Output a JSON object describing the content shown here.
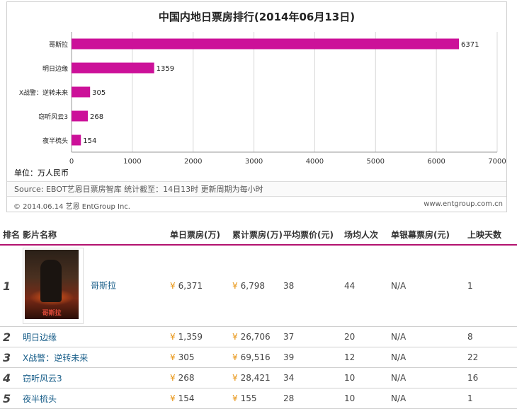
{
  "chart_data": {
    "type": "bar",
    "orientation": "horizontal",
    "title": "中国内地日票房排行(2014年06月13日)",
    "categories": [
      "哥斯拉",
      "明日边缘",
      "X战警：逆转未来",
      "窃听风云3",
      "夜半梳头"
    ],
    "values": [
      6371,
      1359,
      305,
      268,
      154
    ],
    "xlim": [
      0,
      7000
    ],
    "xticks": [
      "0",
      "1000",
      "2000",
      "3000",
      "4000",
      "5000",
      "6000",
      "7000"
    ],
    "grid": true,
    "bar_color": "#cc1199",
    "unit_label": "单位：万人民币"
  },
  "source_line": "Source:  EBOT艺恩日票房智库   统计截至：14日13时   更新周期为每小时",
  "copyright": "© 2014.06.14 艺恩 EntGroup Inc.",
  "site": "www.entgroup.com.cn",
  "table": {
    "headers": [
      "排名",
      "影片名称",
      "单日票房(万)",
      "累计票房(万)",
      "平均票价(元)",
      "场均人次",
      "单银幕票房(元)",
      "上映天数"
    ],
    "currency_symbol": "¥",
    "poster_text": "哥斯拉",
    "rows": [
      {
        "rank": "1",
        "name": "哥斯拉",
        "daily": "6,371",
        "total": "6,798",
        "avg_price": "38",
        "per_show": "44",
        "per_screen": "N/A",
        "days": "1"
      },
      {
        "rank": "2",
        "name": "明日边缘",
        "daily": "1,359",
        "total": "26,706",
        "avg_price": "37",
        "per_show": "20",
        "per_screen": "N/A",
        "days": "8"
      },
      {
        "rank": "3",
        "name": "X战警：逆转未来",
        "daily": "305",
        "total": "69,516",
        "avg_price": "39",
        "per_show": "12",
        "per_screen": "N/A",
        "days": "22"
      },
      {
        "rank": "4",
        "name": "窃听风云3",
        "daily": "268",
        "total": "28,421",
        "avg_price": "34",
        "per_show": "10",
        "per_screen": "N/A",
        "days": "16"
      },
      {
        "rank": "5",
        "name": "夜半梳头",
        "daily": "154",
        "total": "155",
        "avg_price": "28",
        "per_show": "10",
        "per_screen": "N/A",
        "days": "1"
      }
    ]
  }
}
